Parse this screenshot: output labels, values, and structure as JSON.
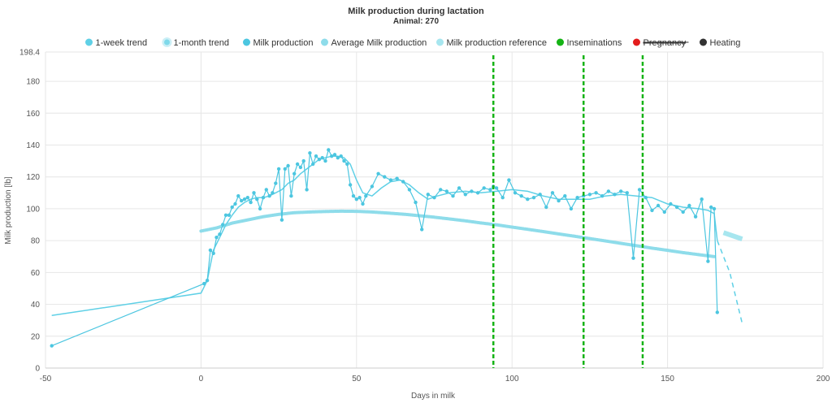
{
  "chart_data": {
    "type": "line",
    "title": "Milk production during lactation",
    "subtitle": "Animal: 270",
    "xlabel": "Days in milk",
    "ylabel": "Milk production [lb]",
    "xlim": [
      -50,
      200
    ],
    "ylim": [
      0,
      198.4
    ],
    "xticks": [
      "-50",
      "0",
      "50",
      "100",
      "150",
      "200"
    ],
    "yticks": [
      "0",
      "20",
      "40",
      "60",
      "80",
      "100",
      "120",
      "140",
      "160",
      "180",
      "198.4"
    ],
    "grid": true,
    "legend_position": "top-center",
    "colors": {
      "week_trend": "#5fd0e6",
      "month_trend": "#a8e4f0",
      "milk": "#4cc6e0",
      "average": "#8edcea",
      "reference": "#a7e6ef",
      "insemination": "#15b315",
      "pregnancy": "#e31c1c",
      "heating": "#333333"
    },
    "legend": [
      {
        "key": "week_trend",
        "label": "1-week trend",
        "strike": false
      },
      {
        "key": "month_trend",
        "label": "1-month trend",
        "strike": false
      },
      {
        "key": "milk",
        "label": "Milk production",
        "strike": false
      },
      {
        "key": "average",
        "label": "Average Milk production",
        "strike": false
      },
      {
        "key": "reference",
        "label": "Milk production reference",
        "strike": false
      },
      {
        "key": "insemination",
        "label": "Inseminations",
        "strike": false
      },
      {
        "key": "pregnancy",
        "label": "Pregnancy",
        "strike": true
      },
      {
        "key": "heating",
        "label": "Heating",
        "strike": false
      }
    ],
    "series": [
      {
        "name": "Milk production",
        "key": "milk",
        "x": [
          -48,
          1,
          2,
          3,
          4,
          5,
          6,
          7,
          8,
          9,
          10,
          11,
          12,
          13,
          14,
          15,
          16,
          17,
          18,
          19,
          20,
          21,
          22,
          23,
          24,
          25,
          26,
          27,
          28,
          29,
          30,
          31,
          32,
          33,
          34,
          35,
          36,
          37,
          38,
          39,
          40,
          41,
          42,
          43,
          44,
          45,
          46,
          47,
          48,
          49,
          50,
          51,
          52,
          53,
          55,
          57,
          59,
          61,
          63,
          65,
          67,
          69,
          71,
          73,
          75,
          77,
          79,
          81,
          83,
          85,
          87,
          89,
          91,
          93,
          94,
          95,
          97,
          99,
          101,
          103,
          105,
          107,
          109,
          111,
          113,
          115,
          117,
          119,
          121,
          123,
          125,
          127,
          129,
          131,
          133,
          135,
          137,
          139,
          141,
          143,
          145,
          147,
          149,
          151,
          153,
          155,
          157,
          159,
          161,
          163,
          164,
          165,
          166
        ],
        "y": [
          14,
          53,
          55,
          74,
          72,
          82,
          84,
          90,
          96,
          96,
          101,
          103,
          108,
          105,
          106,
          107,
          104,
          110,
          106,
          100,
          107,
          112,
          108,
          110,
          116,
          125,
          93,
          125,
          127,
          108,
          122,
          128,
          126,
          130,
          112,
          135,
          128,
          133,
          131,
          132,
          130,
          137,
          133,
          134,
          132,
          133,
          130,
          128,
          115,
          108,
          106,
          107,
          103,
          108,
          114,
          122,
          120,
          118,
          119,
          117,
          112,
          104,
          87,
          109,
          107,
          112,
          111,
          108,
          113,
          109,
          111,
          110,
          113,
          112,
          114,
          113,
          107,
          118,
          110,
          108,
          106,
          107,
          109,
          101,
          110,
          105,
          108,
          100,
          107,
          108,
          109,
          110,
          108,
          111,
          109,
          111,
          110,
          69,
          112,
          107,
          99,
          102,
          98,
          103,
          101,
          98,
          102,
          95,
          106,
          67,
          101,
          100,
          35
        ]
      },
      {
        "name": "1-week trend",
        "key": "week_trend",
        "x": [
          -48,
          0,
          2,
          4,
          6,
          8,
          10,
          12,
          14,
          16,
          18,
          20,
          22,
          24,
          26,
          28,
          30,
          32,
          34,
          36,
          38,
          40,
          42,
          44,
          46,
          48,
          50,
          52,
          55,
          58,
          61,
          64,
          67,
          70,
          73,
          76,
          80,
          85,
          90,
          95,
          100,
          105,
          110,
          115,
          120,
          125,
          130,
          135,
          140,
          145,
          150,
          155,
          160,
          163,
          165,
          166,
          170,
          174
        ],
        "y": [
          33,
          47,
          55,
          74,
          82,
          90,
          96,
          101,
          104,
          106,
          107,
          107,
          108,
          110,
          112,
          116,
          118,
          122,
          125,
          128,
          131,
          132,
          133,
          133,
          132,
          128,
          118,
          110,
          108,
          113,
          117,
          118,
          115,
          110,
          106,
          108,
          110,
          111,
          110,
          111,
          112,
          111,
          108,
          106,
          106,
          106,
          108,
          109,
          108,
          107,
          103,
          101,
          100,
          99,
          97,
          80,
          60,
          28
        ]
      },
      {
        "name": "Average Milk production",
        "key": "average",
        "x": [
          0,
          5,
          10,
          15,
          20,
          25,
          30,
          35,
          40,
          45,
          50,
          55,
          60,
          65,
          70,
          75,
          80,
          85,
          90,
          95,
          100,
          105,
          110,
          115,
          120,
          125,
          130,
          135,
          140,
          145,
          150,
          155,
          160,
          165
        ],
        "y": [
          86,
          88,
          91,
          93,
          95,
          96.5,
          97.5,
          98,
          98.3,
          98.5,
          98.4,
          98,
          97.3,
          96.6,
          95.7,
          94.7,
          93.6,
          92.4,
          91.1,
          89.9,
          88.5,
          87.1,
          85.7,
          84.2,
          82.8,
          81.3,
          79.8,
          78.3,
          76.8,
          75.3,
          73.9,
          72.5,
          71.2,
          70
        ]
      },
      {
        "name": "Milk production reference",
        "key": "reference",
        "x": [
          168,
          174
        ],
        "y": [
          85,
          81
        ]
      }
    ],
    "inseminations": [
      94,
      123,
      142
    ]
  }
}
